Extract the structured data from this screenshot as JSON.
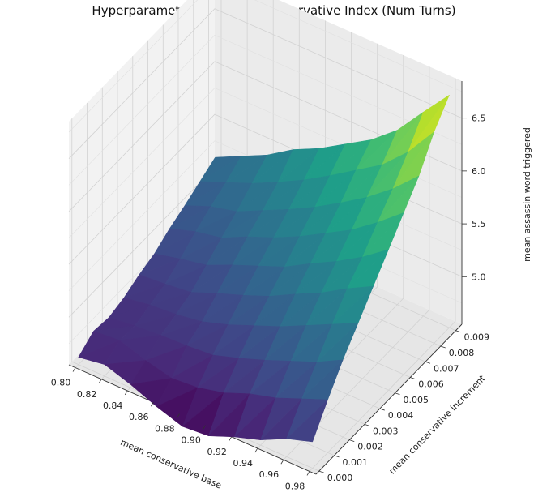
{
  "chart_data": {
    "type": "surface3d",
    "title": "Hyperparameter Tuning for Conservative Index (Num Turns)",
    "xlabel": "mean conservative base",
    "ylabel": "mean conservative increment",
    "zlabel": "mean assassin word triggered",
    "x": [
      0.8,
      0.82,
      0.84,
      0.86,
      0.88,
      0.9,
      0.92,
      0.94,
      0.96,
      0.98
    ],
    "y": [
      0.0,
      0.001,
      0.002,
      0.003,
      0.004,
      0.005,
      0.006,
      0.007,
      0.008,
      0.009
    ],
    "z": [
      [
        4.62,
        4.72,
        4.7,
        4.74,
        4.81,
        4.86,
        4.95,
        5.02,
        5.1,
        5.18
      ],
      [
        4.66,
        4.74,
        4.73,
        4.78,
        4.83,
        4.92,
        5.03,
        5.12,
        5.2,
        5.3
      ],
      [
        4.58,
        4.66,
        4.75,
        4.8,
        4.86,
        4.97,
        5.08,
        5.18,
        5.3,
        5.42
      ],
      [
        4.48,
        4.6,
        4.76,
        4.84,
        4.96,
        5.08,
        5.2,
        5.3,
        5.42,
        5.58
      ],
      [
        4.4,
        4.62,
        4.78,
        4.92,
        5.05,
        5.18,
        5.3,
        5.42,
        5.55,
        5.7
      ],
      [
        4.42,
        4.68,
        4.86,
        5.02,
        5.15,
        5.28,
        5.42,
        5.55,
        5.7,
        5.85
      ],
      [
        4.52,
        4.78,
        4.95,
        5.12,
        5.28,
        5.42,
        5.56,
        5.7,
        5.86,
        6.0
      ],
      [
        4.6,
        4.85,
        5.05,
        5.24,
        5.4,
        5.55,
        5.7,
        5.86,
        6.02,
        6.2
      ],
      [
        4.72,
        4.95,
        5.15,
        5.36,
        5.55,
        5.7,
        5.88,
        6.05,
        6.25,
        6.48
      ],
      [
        4.8,
        5.05,
        5.28,
        5.48,
        5.68,
        5.88,
        6.08,
        6.28,
        6.55,
        6.75
      ]
    ],
    "xticks": [
      "0.80",
      "0.82",
      "0.84",
      "0.86",
      "0.88",
      "0.90",
      "0.92",
      "0.94",
      "0.96",
      "0.98"
    ],
    "yticks": [
      "0.000",
      "0.001",
      "0.002",
      "0.003",
      "0.004",
      "0.005",
      "0.006",
      "0.007",
      "0.008",
      "0.009"
    ],
    "zticks": [
      "5.0",
      "5.5",
      "6.0",
      "6.5"
    ],
    "xlim": [
      0.795,
      0.985
    ],
    "ylim": [
      -0.0002,
      0.0094
    ],
    "zlim": [
      4.55,
      6.85
    ],
    "colormap": "viridis",
    "grid": true
  }
}
